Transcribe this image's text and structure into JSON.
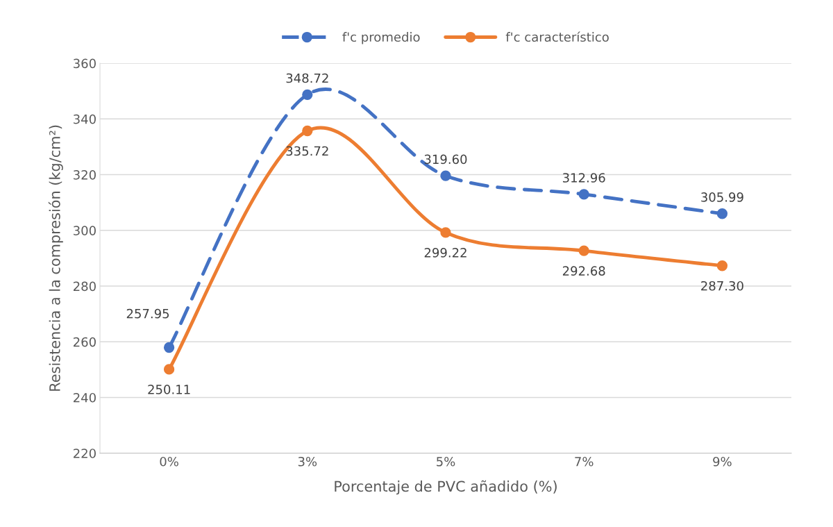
{
  "chart_data": {
    "type": "line",
    "xlabel": "Porcentaje de PVC añadido (%)",
    "ylabel": "Resistencia a la compresión (kg/cm²)",
    "categories": [
      "0%",
      "3%",
      "5%",
      "7%",
      "9%"
    ],
    "series": [
      {
        "name": "f'c promedio",
        "color": "#4472c4",
        "line_style": "dashed",
        "values": [
          257.95,
          348.72,
          319.6,
          312.96,
          305.99
        ],
        "value_labels": [
          "257.95",
          "348.72",
          "319.60",
          "312.96",
          "305.99"
        ]
      },
      {
        "name": "f'c característico",
        "color": "#ed7d31",
        "line_style": "solid",
        "values": [
          250.11,
          335.72,
          299.22,
          292.68,
          287.3
        ],
        "value_labels": [
          "250.11",
          "335.72",
          "299.22",
          "292.68",
          "287.30"
        ]
      }
    ],
    "ylim": [
      220,
      360
    ],
    "yticks": [
      220,
      240,
      260,
      280,
      300,
      320,
      340,
      360
    ],
    "grid": "y",
    "legend": "top",
    "marker": "circle"
  }
}
